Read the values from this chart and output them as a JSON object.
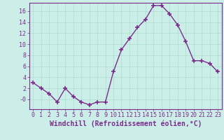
{
  "x": [
    0,
    1,
    2,
    3,
    4,
    5,
    6,
    7,
    8,
    9,
    10,
    11,
    12,
    13,
    14,
    15,
    16,
    17,
    18,
    19,
    20,
    21,
    22,
    23
  ],
  "y": [
    3,
    2,
    1,
    -0.5,
    2,
    0.5,
    -0.5,
    -1,
    -0.5,
    -0.5,
    5,
    9,
    11,
    13,
    14.5,
    17,
    17,
    15.5,
    13.5,
    10.5,
    7,
    7,
    6.5,
    5
  ],
  "line_color": "#7b2d8b",
  "marker": "+",
  "marker_size": 5,
  "marker_lw": 1.2,
  "bg_color": "#cceee8",
  "grid_color": "#aaddcc",
  "xlabel": "Windchill (Refroidissement éolien,°C)",
  "ylabel": "",
  "xlim": [
    -0.5,
    23.5
  ],
  "ylim": [
    -1.8,
    17.5
  ],
  "yticks": [
    0,
    2,
    4,
    6,
    8,
    10,
    12,
    14,
    16
  ],
  "ytick_labels": [
    "-0",
    "2",
    "4",
    "6",
    "8",
    "10",
    "12",
    "14",
    "16"
  ],
  "xticks": [
    0,
    1,
    2,
    3,
    4,
    5,
    6,
    7,
    8,
    9,
    10,
    11,
    12,
    13,
    14,
    15,
    16,
    17,
    18,
    19,
    20,
    21,
    22,
    23
  ],
  "font_color": "#7b2d8b",
  "tick_font_size": 6,
  "xlabel_size": 7,
  "line_width": 1.0,
  "spine_color": "#7b2d8b"
}
